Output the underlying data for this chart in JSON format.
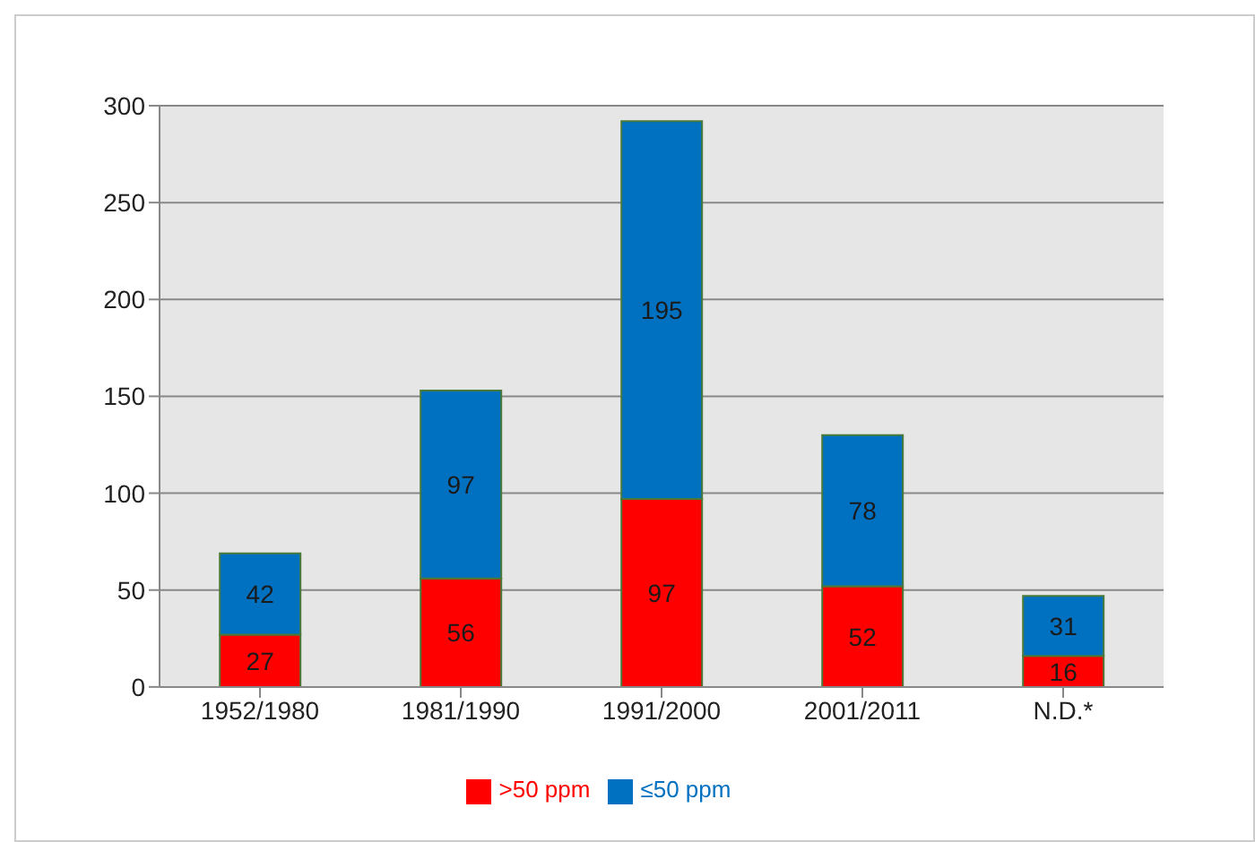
{
  "chart_data": {
    "type": "bar",
    "stacked": true,
    "categories": [
      "1952/1980",
      "1981/1990",
      "1991/2000",
      "2001/2011",
      "N.D.*"
    ],
    "series": [
      {
        "name": ">50 ppm",
        "color": "#ff0000",
        "values": [
          27,
          56,
          97,
          52,
          16
        ]
      },
      {
        "name": "≤50 ppm",
        "color": "#0070c0",
        "values": [
          42,
          97,
          195,
          78,
          31
        ]
      }
    ],
    "ylim": [
      0,
      300
    ],
    "yticks": [
      0,
      50,
      100,
      150,
      200,
      250,
      300
    ],
    "grid": "y",
    "legend": "bottom",
    "data_labels": true
  }
}
